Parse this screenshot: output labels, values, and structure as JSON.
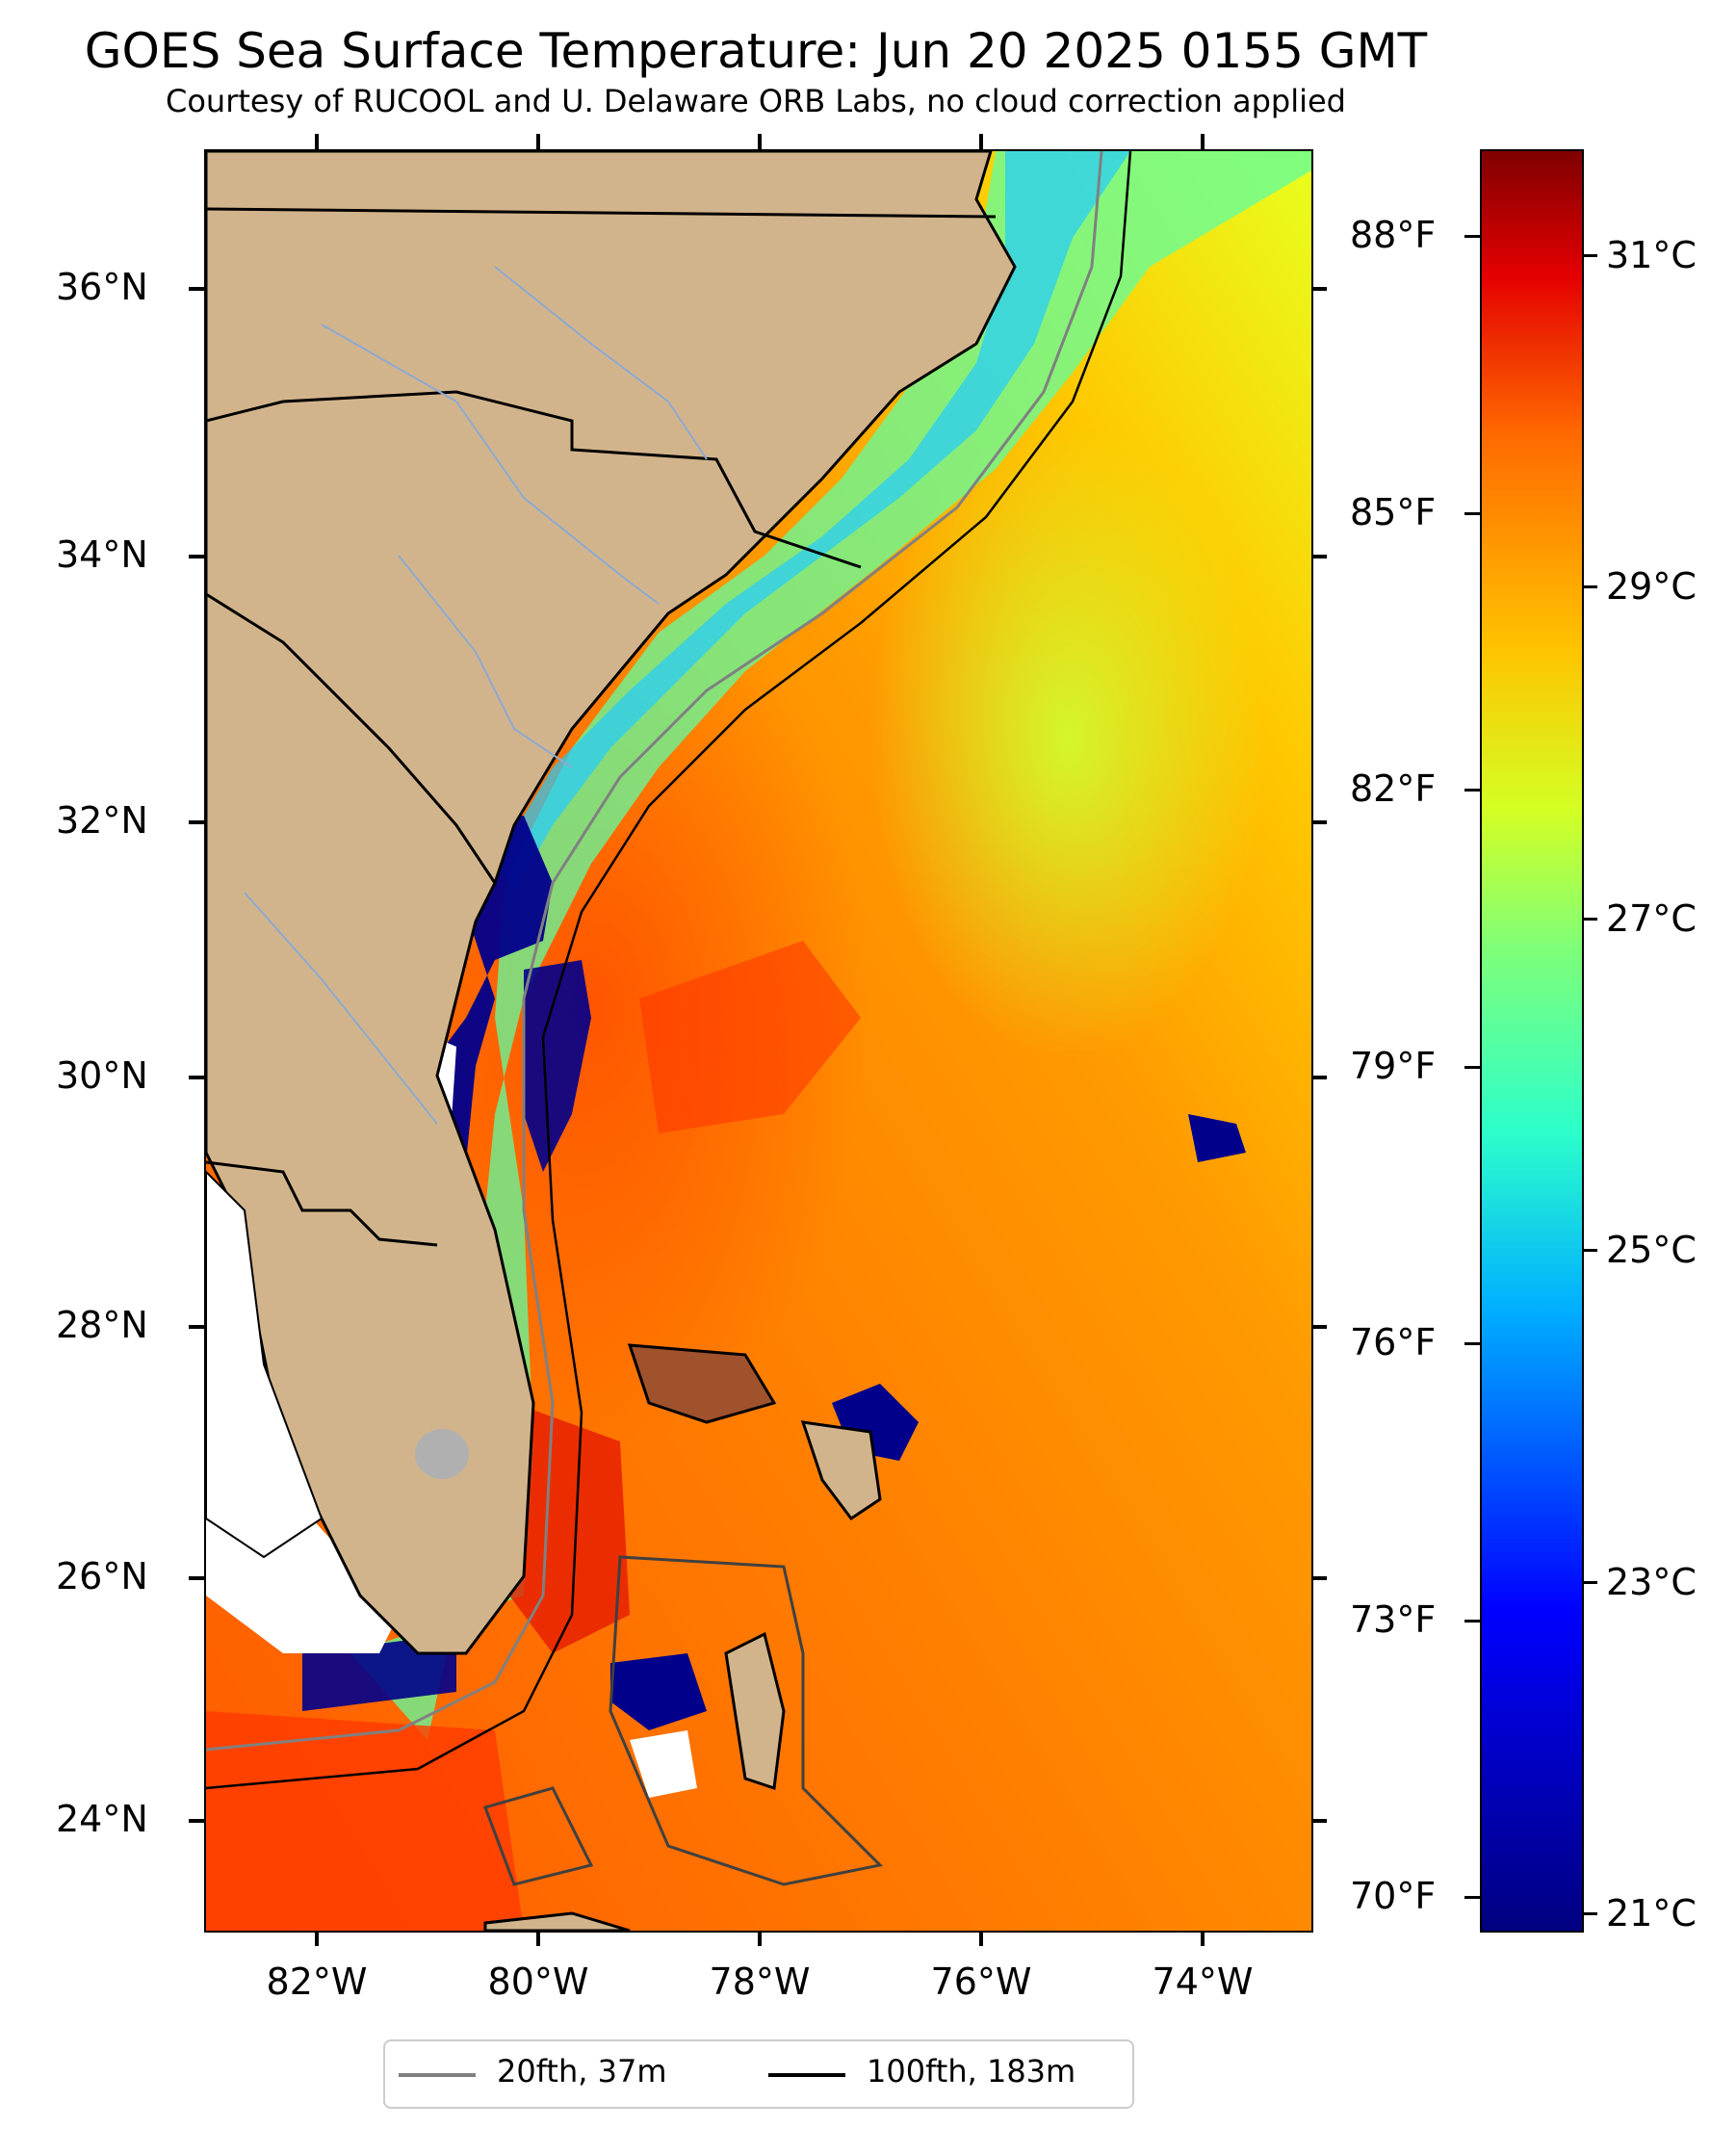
{
  "header": {
    "title": "GOES Sea Surface Temperature: Jun 20 2025 0155 GMT",
    "subtitle": "Courtesy of RUCOOL and U. Delaware ORB Labs, no cloud correction applied"
  },
  "map": {
    "latitude_labels": [
      "36°N",
      "34°N",
      "32°N",
      "30°N",
      "28°N",
      "26°N",
      "24°N"
    ],
    "longitude_labels": [
      "82°W",
      "80°W",
      "78°W",
      "76°W",
      "74°W"
    ],
    "land_color": "#d2b48c",
    "cloud_color": "#ffffff",
    "lake_color": "#b0b0b0",
    "river_color": "#8da9d1"
  },
  "colorbar": {
    "fahrenheit_labels": [
      "88°F",
      "85°F",
      "82°F",
      "79°F",
      "76°F",
      "73°F",
      "70°F"
    ],
    "celsius_labels": [
      "31°C",
      "29°C",
      "27°C",
      "25°C",
      "23°C",
      "21°C"
    ],
    "colormap": "jet",
    "min_color": "#00007f",
    "max_color": "#7f0000"
  },
  "legend": {
    "items": [
      {
        "label": "20fth, 37m",
        "color": "#808080"
      },
      {
        "label": "100fth, 183m",
        "color": "#000000"
      }
    ]
  }
}
